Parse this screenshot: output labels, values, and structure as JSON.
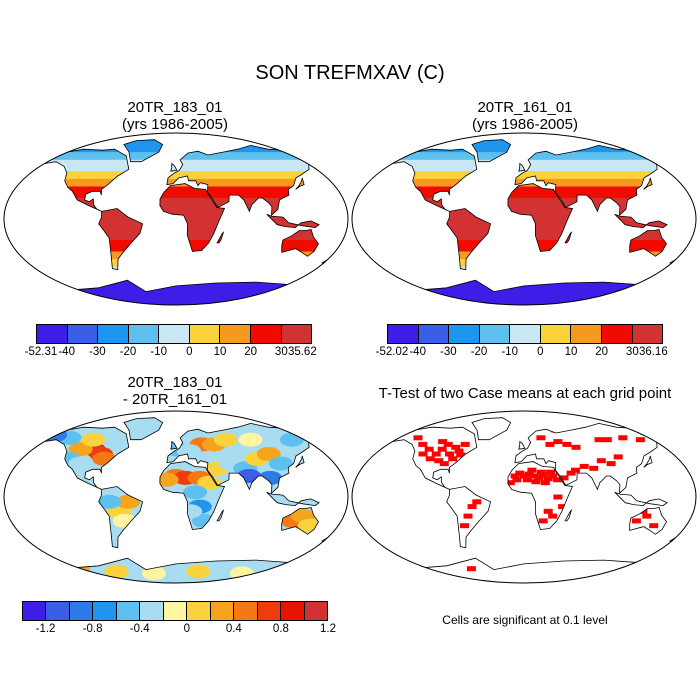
{
  "title": "SON TREFMXAV (C)",
  "panels": {
    "top_left": {
      "line1": "20TR_183_01",
      "line2": "(yrs 1986-2005)",
      "field": "temperature"
    },
    "top_right": {
      "line1": "20TR_161_01",
      "line2": "(yrs 1986-2005)",
      "field": "temperature"
    },
    "bottom_left": {
      "line1": "20TR_183_01",
      "line2": "- 20TR_161_01",
      "field": "difference"
    },
    "bottom_right": {
      "line1": "T-Test of two Case means at each grid point",
      "field": "significance"
    }
  },
  "colorbars": {
    "top_left": {
      "colors": [
        "#3d1ee8",
        "#3a5ee6",
        "#1e96f0",
        "#5ec0ee",
        "#c8e6f4",
        "#fad23c",
        "#f59a1e",
        "#f00a00",
        "#d23232"
      ],
      "labels": [
        "-52.31",
        "-40",
        "-30",
        "-20",
        "-10",
        "0",
        "10",
        "20",
        "30",
        "35.62"
      ]
    },
    "top_right": {
      "colors": [
        "#3d1ee8",
        "#3a5ee6",
        "#1e96f0",
        "#5ec0ee",
        "#c8e6f4",
        "#fad23c",
        "#f59a1e",
        "#f00a00",
        "#d23232"
      ],
      "labels": [
        "-52.02",
        "-40",
        "-30",
        "-20",
        "-10",
        "0",
        "10",
        "20",
        "30",
        "36.16"
      ]
    },
    "diff": {
      "colors": [
        "#3d1ee8",
        "#3a5ee6",
        "#2d7be6",
        "#1e96f0",
        "#5ec0ee",
        "#a8dcf0",
        "#fff5a0",
        "#fad23c",
        "#f5a41e",
        "#f57814",
        "#f03c0a",
        "#e61400",
        "#d23232"
      ],
      "labels": [
        "-1.2",
        "-0.8",
        "-0.4",
        "0",
        "0.4",
        "0.8",
        "1.2"
      ]
    }
  },
  "significance_note": "Cells are significant at 0.1 level",
  "colors": {
    "sig": "#ff0000",
    "ocean": "#ffffff",
    "coast": "#000000"
  }
}
